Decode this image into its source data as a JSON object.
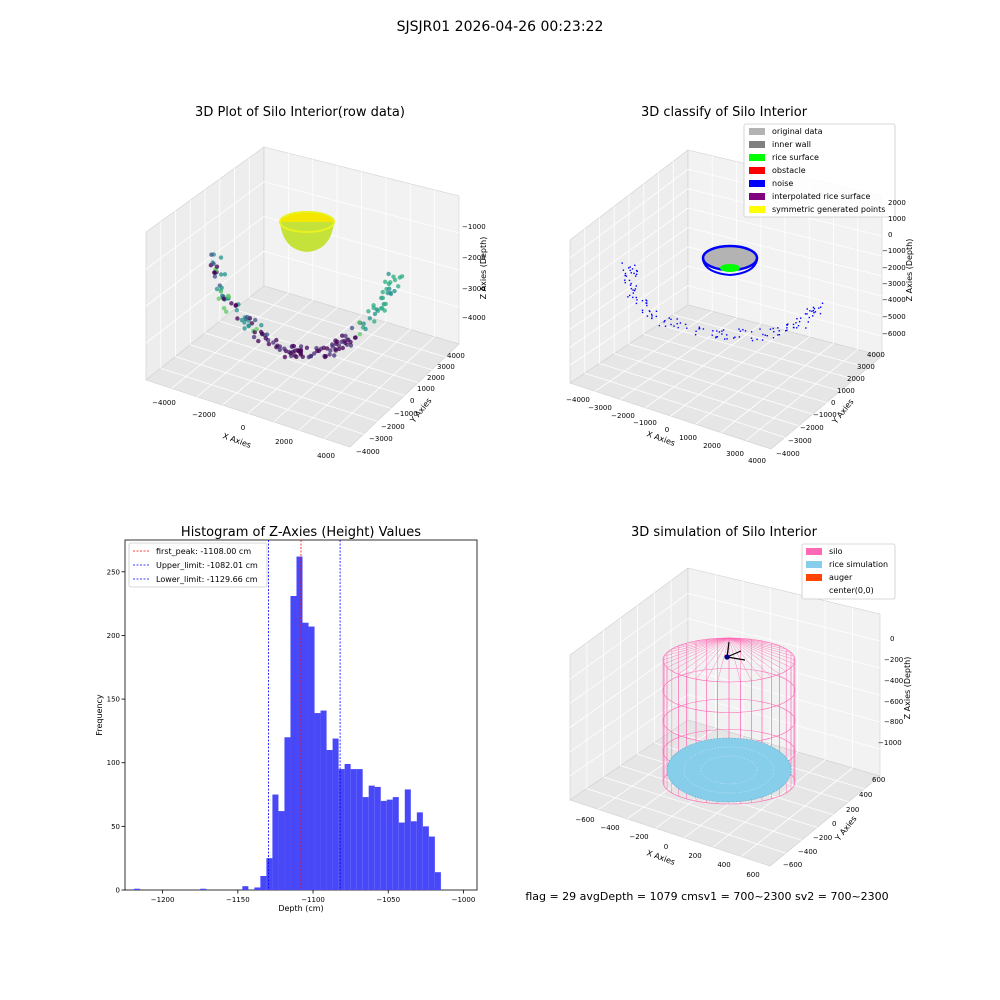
{
  "suptitle": "SJSJR01 2026-04-26 00:23:22",
  "status_line": "flag = 29  avgDepth = 1079 cmsv1 = 700~2300  sv2 = 700~2300",
  "colors": {
    "hist_bar": "#4848f8",
    "first_peak": "#ff0000",
    "limit_lines": "#0000ff",
    "silo": "#ff69b4",
    "rice_sim": "#87ceeb",
    "auger": "#ff4500",
    "original_data": "#b3b3b3",
    "inner_wall": "#808080",
    "rice_surface": "#00ff00",
    "obstacle": "#ff0000",
    "noise": "#0000ff",
    "interp_surface": "#800080",
    "symmetric_points": "#ffff00"
  },
  "chart_data": [
    {
      "type": "scatter",
      "title": "3D Plot of Silo Interior(row data)",
      "xlabel": "X Axies",
      "ylabel": "Y Axies",
      "zlabel": "Z Axies (Depth)",
      "x_ticks": [
        "−4000",
        "−2000",
        "0",
        "2000",
        "4000"
      ],
      "y_ticks": [
        "−4000",
        "−3000",
        "−2000",
        "−1000",
        "0",
        "1000",
        "2000",
        "3000",
        "4000"
      ],
      "z_ticks": [
        "−1000",
        "−2000",
        "−3000",
        "−4000"
      ],
      "grid": true
    },
    {
      "type": "scatter",
      "title": "3D classify of Silo Interior",
      "xlabel": "X Axies",
      "ylabel": "Y Axies",
      "zlabel": "Z Axies (Depth)",
      "x_ticks": [
        "−4000",
        "−3000",
        "−2000",
        "−1000",
        "0",
        "1000",
        "2000",
        "3000",
        "4000"
      ],
      "y_ticks": [
        "−4000",
        "−3000",
        "−2000",
        "−1000",
        "0",
        "1000",
        "2000",
        "3000",
        "4000"
      ],
      "z_ticks": [
        "2000",
        "1000",
        "0",
        "−1000",
        "−2000",
        "−3000",
        "−4000",
        "−5000",
        "−6000"
      ],
      "legend": [
        "original data",
        "inner wall",
        "rice surface",
        "obstacle",
        "noise",
        "interpolated rice surface",
        "symmetric generated points"
      ],
      "legend_position": "top-right",
      "grid": true
    },
    {
      "type": "bar",
      "title": "Histogram of Z-Axies (Height) Values",
      "xlabel": "Depth (cm)",
      "ylabel": "Frequency",
      "xlim": [
        -1225,
        -991
      ],
      "ylim": [
        0,
        275
      ],
      "x_ticks": [
        -1200,
        -1150,
        -1100,
        -1050,
        -1000
      ],
      "x_tick_labels": [
        "−1200",
        "−1150",
        "−1100",
        "−1050",
        "−1000"
      ],
      "y_ticks": [
        0,
        50,
        100,
        150,
        200,
        250
      ],
      "bin_width": 4,
      "bins": [
        {
          "x": -1217,
          "y": 1
        },
        {
          "x": -1173,
          "y": 1
        },
        {
          "x": -1145,
          "y": 3
        },
        {
          "x": -1137,
          "y": 2
        },
        {
          "x": -1133,
          "y": 11
        },
        {
          "x": -1129,
          "y": 25
        },
        {
          "x": -1125,
          "y": 75
        },
        {
          "x": -1121,
          "y": 62
        },
        {
          "x": -1117,
          "y": 120
        },
        {
          "x": -1113,
          "y": 231
        },
        {
          "x": -1109,
          "y": 262
        },
        {
          "x": -1105,
          "y": 210
        },
        {
          "x": -1101,
          "y": 207
        },
        {
          "x": -1097,
          "y": 139
        },
        {
          "x": -1093,
          "y": 141
        },
        {
          "x": -1089,
          "y": 110
        },
        {
          "x": -1085,
          "y": 119
        },
        {
          "x": -1081,
          "y": 95
        },
        {
          "x": -1077,
          "y": 99
        },
        {
          "x": -1073,
          "y": 95
        },
        {
          "x": -1069,
          "y": 95
        },
        {
          "x": -1065,
          "y": 73
        },
        {
          "x": -1061,
          "y": 82
        },
        {
          "x": -1057,
          "y": 81
        },
        {
          "x": -1053,
          "y": 70
        },
        {
          "x": -1049,
          "y": 71
        },
        {
          "x": -1045,
          "y": 73
        },
        {
          "x": -1041,
          "y": 53
        },
        {
          "x": -1037,
          "y": 79
        },
        {
          "x": -1033,
          "y": 54
        },
        {
          "x": -1029,
          "y": 61
        },
        {
          "x": -1025,
          "y": 50
        },
        {
          "x": -1021,
          "y": 42
        },
        {
          "x": -1017,
          "y": 14
        }
      ],
      "vlines": [
        {
          "label": "first_peak: -1108.00 cm",
          "x": -1108.0,
          "color": "#ff0000"
        },
        {
          "label": "Upper_limit: -1082.01 cm",
          "x": -1082.01,
          "color": "#0000ff"
        },
        {
          "label": "Lower_limit: -1129.66 cm",
          "x": -1129.66,
          "color": "#0000ff"
        }
      ],
      "legend_position": "top-left"
    },
    {
      "type": "scatter",
      "title": "3D simulation of Silo Interior",
      "xlabel": "X Axies",
      "ylabel": "Y Axies",
      "zlabel": "Z Axies (Depth)",
      "x_ticks": [
        "−600",
        "−400",
        "−200",
        "0",
        "200",
        "400",
        "600"
      ],
      "y_ticks": [
        "−600",
        "−400",
        "−200",
        "0",
        "200",
        "400",
        "600"
      ],
      "z_ticks": [
        "0",
        "−200",
        "−400",
        "−600",
        "−800",
        "−1000"
      ],
      "legend": [
        "silo",
        "rice simulation",
        "auger",
        "center(0,0)"
      ],
      "legend_position": "top-right",
      "grid": true
    }
  ]
}
